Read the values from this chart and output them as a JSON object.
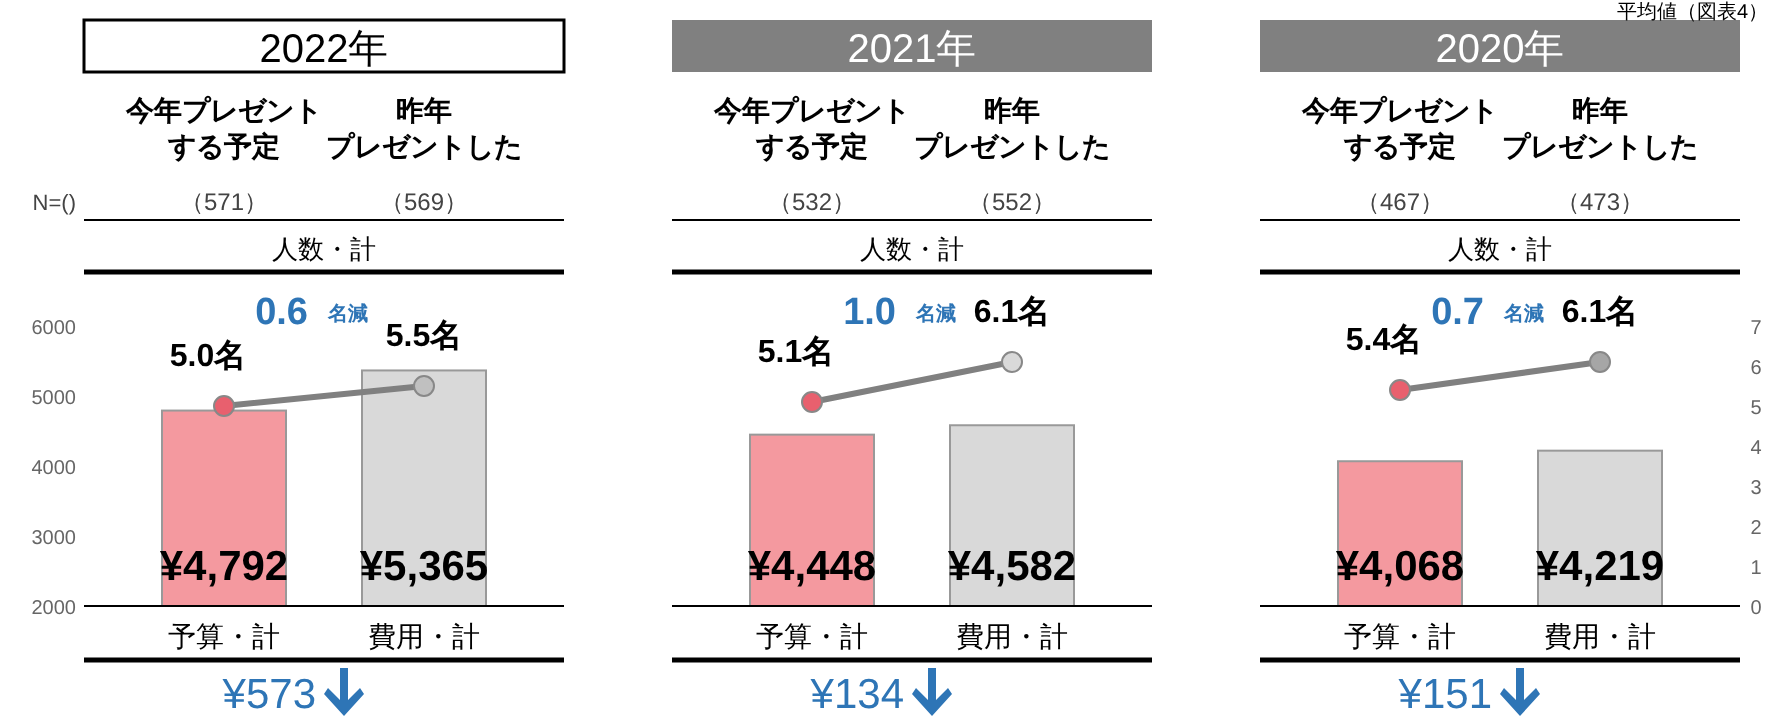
{
  "chart_data": [
    {
      "type": "bar",
      "title": "2022年",
      "categories": [
        "予算・計",
        "費用・計"
      ],
      "ylim": [
        2000,
        6000
      ],
      "yticks": [
        2000,
        3000,
        4000,
        5000,
        6000
      ],
      "y2lim": [
        0,
        7
      ],
      "tick_labels": "xy",
      "marker": "circle",
      "series": [
        {
          "type": "bar",
          "colors": [
            "#f4999f",
            "#d9d9d9"
          ],
          "values": [
            4792,
            5365
          ],
          "value_labels": [
            "¥4,792",
            "¥5,365"
          ]
        },
        {
          "type": "line",
          "axis": "y2",
          "color": "#808080",
          "colors": [
            "#e8606e",
            "#c0c0c0"
          ],
          "values": [
            5.0,
            5.5
          ],
          "value_labels": [
            "5.0名",
            "5.5名"
          ]
        }
      ],
      "annotations": [
        "今年プレゼント",
        "する予定",
        "昨年",
        "プレゼントした",
        "（571）",
        "（569）",
        "人数・計",
        "0.6",
        "名減",
        "¥573",
        "N=()"
      ]
    },
    {
      "type": "bar",
      "title": "2021年",
      "categories": [
        "予算・計",
        "費用・計"
      ],
      "ylim": [
        2000,
        6000
      ],
      "y2lim": [
        0,
        7
      ],
      "tick_labels": "x",
      "marker": "circle",
      "series": [
        {
          "type": "bar",
          "colors": [
            "#f4999f",
            "#d9d9d9"
          ],
          "values": [
            4448,
            4582
          ],
          "value_labels": [
            "¥4,448",
            "¥4,582"
          ]
        },
        {
          "type": "line",
          "axis": "y2",
          "color": "#808080",
          "colors": [
            "#e8606e",
            "#d9d9d9"
          ],
          "values": [
            5.1,
            6.1
          ],
          "value_labels": [
            "5.1名",
            "6.1名"
          ]
        }
      ],
      "annotations": [
        "今年プレゼント",
        "する予定",
        "昨年",
        "プレゼントした",
        "（532）",
        "（552）",
        "人数・計",
        "1.0",
        "名減",
        "¥134"
      ]
    },
    {
      "type": "bar",
      "title": "2020年",
      "categories": [
        "予算・計",
        "費用・計"
      ],
      "ylim": [
        2000,
        6000
      ],
      "y2lim": [
        0,
        7
      ],
      "y2ticks": [
        0,
        1,
        2,
        3,
        4,
        5,
        6,
        7
      ],
      "tick_labels": "xy2",
      "marker": "circle",
      "series": [
        {
          "type": "bar",
          "colors": [
            "#f4999f",
            "#d9d9d9"
          ],
          "values": [
            4068,
            4219
          ],
          "value_labels": [
            "¥4,068",
            "¥4,219"
          ]
        },
        {
          "type": "line",
          "axis": "y2",
          "color": "#808080",
          "colors": [
            "#e8606e",
            "#a6a6a6"
          ],
          "values": [
            5.4,
            6.1
          ],
          "value_labels": [
            "5.4名",
            "6.1名"
          ]
        }
      ],
      "annotations": [
        "今年プレゼント",
        "する予定",
        "昨年",
        "プレゼントした",
        "（467）",
        "（473）",
        "人数・計",
        "0.7",
        "名減",
        "¥151",
        "平均値（図表4）"
      ]
    }
  ]
}
